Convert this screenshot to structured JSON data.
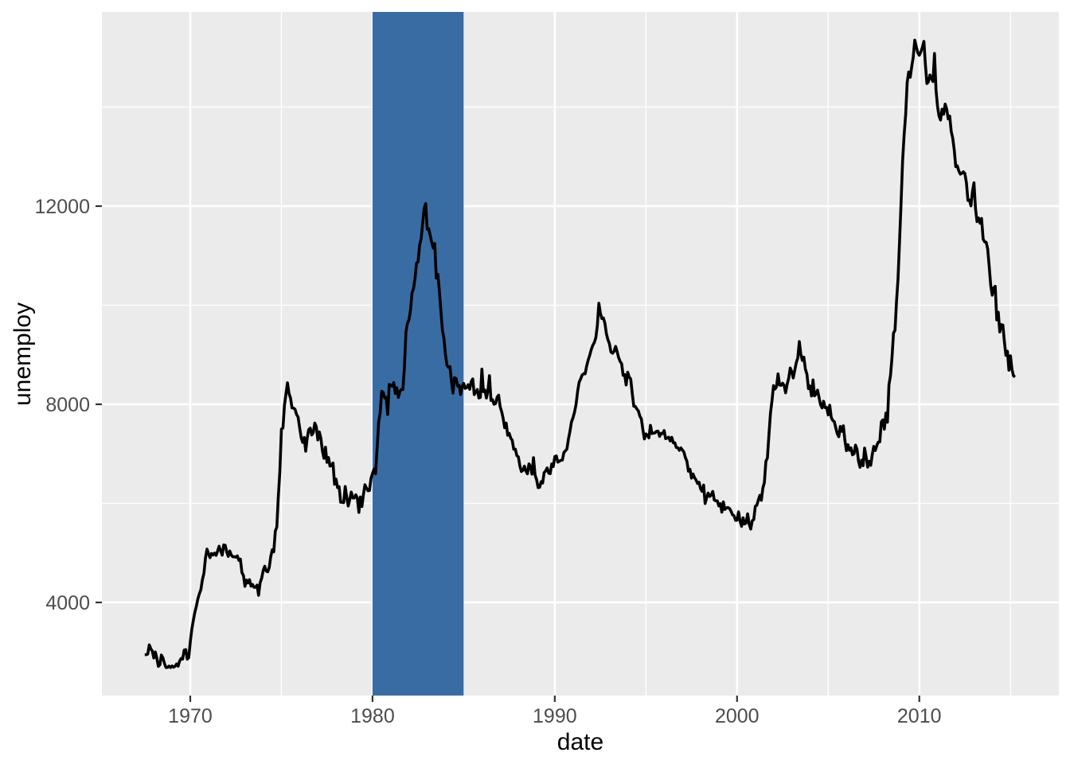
{
  "figure": {
    "background": "#ffffff",
    "panel_background": "#EBEBEB",
    "grid_color": "#FFFFFF",
    "tick_mark_color": "#333333",
    "tick_label_color": "#4d4d4d"
  },
  "chart_data": {
    "type": "line",
    "title": "",
    "xlabel": "date",
    "ylabel": "unemploy",
    "grid": "on",
    "legend": "none",
    "x_axis": {
      "range": [
        1965.152,
        2017.656
      ],
      "major_ticks": [
        {
          "label": "1970",
          "value": 1970
        },
        {
          "label": "1980",
          "value": 1980
        },
        {
          "label": "1990",
          "value": 1990
        },
        {
          "label": "2000",
          "value": 2000
        },
        {
          "label": "2010",
          "value": 2010
        }
      ],
      "minor_ticks": [
        1975,
        1985,
        1995,
        2005,
        2015
      ]
    },
    "y_axis": {
      "range": [
        2120,
        15920
      ],
      "major_ticks": [
        {
          "label": "4000",
          "value": 4000
        },
        {
          "label": "8000",
          "value": 8000
        },
        {
          "label": "12000",
          "value": 12000
        }
      ],
      "minor_ticks": [
        6000,
        10000,
        14000
      ]
    },
    "highlight_rect": {
      "xmin": 1980,
      "xmax": 1985,
      "fill": "#3A6CA4",
      "note": "shaded vertical band from 1980 to 1985, full panel height, drawn above gridlines and below the line"
    },
    "series": [
      {
        "name": "unemploy",
        "color": "#000000",
        "stroke_width": 3.6,
        "x_start_year": 1967.5,
        "x_step_years": 0.0833333,
        "values": [
          2944,
          2945,
          2958,
          3143,
          3066,
          3018,
          2878,
          3001,
          2877,
          2709,
          2740,
          2938,
          2883,
          2768,
          2686,
          2689,
          2715,
          2685,
          2718,
          2692,
          2712,
          2758,
          2713,
          2816,
          2868,
          2856,
          3040,
          3049,
          2856,
          2884,
          3201,
          3453,
          3635,
          3797,
          3919,
          4071,
          4175,
          4256,
          4456,
          4591,
          4898,
          5076,
          4986,
          4903,
          4987,
          4959,
          4996,
          4949,
          5035,
          5134,
          5042,
          4954,
          5161,
          5154,
          5019,
          4928,
          5038,
          4959,
          4922,
          4923,
          4913,
          4939,
          4849,
          4875,
          4602,
          4543,
          4326,
          4452,
          4394,
          4459,
          4329,
          4363,
          4305,
          4305,
          4350,
          4144,
          4396,
          4489,
          4644,
          4731,
          4634,
          4618,
          4705,
          4927,
          5063,
          5022,
          5437,
          5523,
          6140,
          6636,
          7501,
          7520,
          7978,
          8210,
          8433,
          8220,
          8127,
          7928,
          7923,
          7897,
          7794,
          7744,
          7534,
          7326,
          7230,
          7330,
          7053,
          7322,
          7490,
          7518,
          7380,
          7430,
          7620,
          7545,
          7280,
          7443,
          7307,
          7059,
          6911,
          7134,
          6829,
          6925,
          6751,
          6763,
          6815,
          6386,
          6489,
          6318,
          6337,
          6022,
          6023,
          6014,
          6340,
          6125,
          5947,
          6077,
          6228,
          6109,
          6109,
          6173,
          6109,
          5819,
          6130,
          5935,
          6178,
          6375,
          6310,
          6254,
          6259,
          6503,
          6602,
          6694,
          6598,
          7091,
          7638,
          7821,
          8262,
          8242,
          8128,
          8138,
          7795,
          8402,
          8383,
          8364,
          8439,
          8219,
          8336,
          8138,
          8260,
          8298,
          8298,
          8748,
          9462,
          9637,
          9705,
          9895,
          10244,
          10335,
          10538,
          10849,
          10881,
          11217,
          11342,
          11657,
          11954,
          12051,
          11534,
          11545,
          11408,
          11268,
          11154,
          11246,
          10548,
          10623,
          10282,
          9887,
          9499,
          9331,
          9008,
          8791,
          8746,
          8762,
          8456,
          8226,
          8537,
          8519,
          8367,
          8381,
          8198,
          8358,
          8423,
          8321,
          8339,
          8395,
          8302,
          8460,
          8513,
          8196,
          8248,
          8298,
          8128,
          8138,
          8710,
          8256,
          8286,
          8126,
          8282,
          8577,
          8079,
          8095,
          8002,
          8014,
          8142,
          8185,
          7951,
          7854,
          7714,
          7526,
          7621,
          7375,
          7413,
          7317,
          7272,
          7090,
          7094,
          6964,
          6940,
          6757,
          6642,
          6667,
          6752,
          6651,
          6598,
          6797,
          6742,
          6590,
          6922,
          6570,
          6478,
          6318,
          6323,
          6439,
          6410,
          6622,
          6656,
          6715,
          6611,
          6599,
          6797,
          6742,
          6945,
          6957,
          6832,
          6850,
          6869,
          6873,
          7026,
          7062,
          7097,
          7298,
          7454,
          7644,
          7731,
          7844,
          8000,
          8255,
          8441,
          8511,
          8591,
          8616,
          8615,
          8772,
          8893,
          8986,
          9102,
          9191,
          9247,
          9345,
          9589,
          10040,
          9843,
          9730,
          9743,
          9637,
          9423,
          9303,
          9223,
          9056,
          9029,
          9066,
          9170,
          9068,
          8945,
          8866,
          8820,
          8585,
          8599,
          8390,
          8648,
          8551,
          8513,
          8214,
          7960,
          7956,
          7907,
          7867,
          7761,
          7704,
          7486,
          7299,
          7402,
          7373,
          7322,
          7576,
          7411,
          7416,
          7423,
          7456,
          7459,
          7352,
          7413,
          7409,
          7470,
          7306,
          7318,
          7334,
          7259,
          7333,
          7222,
          7224,
          7128,
          7121,
          7072,
          7120,
          7079,
          7038,
          6924,
          6851,
          6648,
          6688,
          6509,
          6593,
          6519,
          6471,
          6401,
          6425,
          6294,
          6242,
          6369,
          5997,
          6112,
          6208,
          6140,
          6170,
          6240,
          6067,
          6053,
          6051,
          5948,
          5994,
          5823,
          6028,
          5877,
          5908,
          5916,
          5897,
          5843,
          5770,
          5751,
          5658,
          5660,
          5830,
          5638,
          5536,
          5708,
          5583,
          5605,
          5787,
          5574,
          5481,
          5649,
          5674,
          5942,
          5960,
          6066,
          6162,
          6061,
          6306,
          6417,
          6847,
          6916,
          7398,
          7824,
          8074,
          8378,
          8307,
          8358,
          8614,
          8388,
          8383,
          8425,
          8382,
          8232,
          8405,
          8529,
          8733,
          8655,
          8531,
          8688,
          8842,
          8937,
          9266,
          9011,
          8887,
          8951,
          8712,
          8604,
          8317,
          8370,
          8167,
          8491,
          8170,
          8212,
          8286,
          8136,
          7990,
          7927,
          8061,
          7932,
          7934,
          7784,
          7980,
          7737,
          7672,
          7651,
          7524,
          7406,
          7345,
          7553,
          7453,
          7566,
          7279,
          7064,
          7184,
          7072,
          7120,
          6980,
          7001,
          7175,
          7091,
          6847,
          6727,
          6872,
          6762,
          7116,
          6927,
          6731,
          6850,
          6766,
          6979,
          7149,
          7067,
          7170,
          7237,
          7240,
          7645,
          7685,
          7497,
          7822,
          7637,
          8395,
          8575,
          8937,
          9438,
          9494,
          10074,
          10538,
          11286,
          12058,
          12898,
          13426,
          13853,
          14499,
          14707,
          14601,
          14814,
          15009,
          15352,
          15219,
          15098,
          15046,
          15113,
          15202,
          15325,
          14849,
          14474,
          14512,
          14648,
          14579,
          14516,
          15081,
          14348,
          14013,
          13820,
          13737,
          13957,
          13855,
          14059,
          13962,
          13763,
          13818,
          13509,
          13373,
          13135,
          12797,
          12813,
          12713,
          12646,
          12660,
          12692,
          12656,
          12471,
          12115,
          12124,
          12005,
          12298,
          12471,
          11950,
          11689,
          11760,
          11654,
          11751,
          11335,
          11279,
          11270,
          11136,
          10787,
          10404,
          10202,
          10349,
          10380,
          9702,
          9859,
          9460,
          9608,
          9599,
          9262,
          8990,
          9071,
          8688,
          8979,
          8705,
          8575,
          8549
        ]
      }
    ]
  }
}
